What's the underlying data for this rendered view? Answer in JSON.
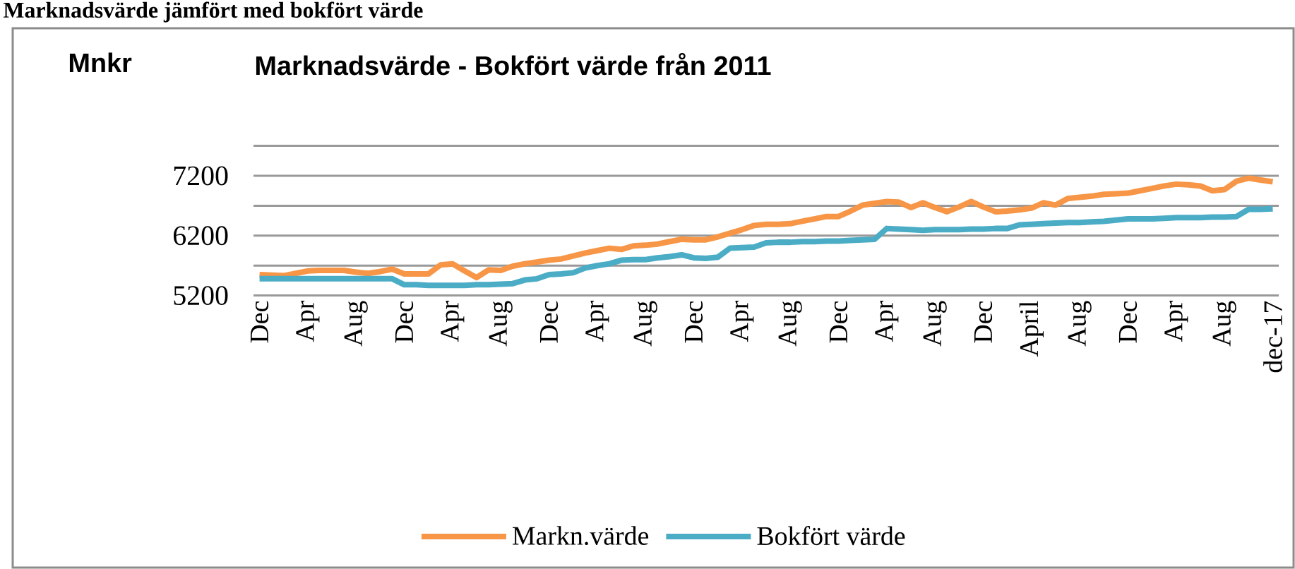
{
  "chart_data": {
    "type": "line",
    "title": "Marknadsvärde jämfört med bokfört värde",
    "subtitle": "Marknadsvärde - Bokfört värde från 2011",
    "annotations": [
      "Mnkr"
    ],
    "categories": [
      "Dec",
      null,
      null,
      null,
      "Apr",
      null,
      null,
      null,
      "Aug",
      null,
      null,
      null,
      "Dec",
      null,
      null,
      null,
      "Apr",
      null,
      null,
      null,
      "Aug",
      null,
      null,
      null,
      "Dec",
      null,
      null,
      null,
      "Apr",
      null,
      null,
      null,
      "Aug",
      null,
      null,
      null,
      "Dec",
      null,
      null,
      null,
      "Apr",
      null,
      null,
      null,
      "Aug",
      null,
      null,
      null,
      "Dec",
      null,
      null,
      null,
      "Apr",
      null,
      null,
      null,
      "Aug",
      null,
      null,
      null,
      "Dec",
      null,
      null,
      null,
      "April",
      null,
      null,
      null,
      "Aug",
      null,
      null,
      null,
      "Dec",
      null,
      null,
      null,
      "Apr",
      null,
      null,
      null,
      "Aug",
      null,
      null,
      null,
      "dec-17"
    ],
    "series": [
      {
        "name": "Markn.värde",
        "color": "#f79646",
        "values": [
          5550,
          5540,
          5530,
          5570,
          5610,
          5620,
          5620,
          5620,
          5590,
          5570,
          5600,
          5640,
          5560,
          5560,
          5560,
          5710,
          5730,
          5610,
          5500,
          5630,
          5620,
          5690,
          5730,
          5760,
          5790,
          5810,
          5860,
          5910,
          5950,
          5990,
          5970,
          6030,
          6040,
          6060,
          6100,
          6140,
          6130,
          6130,
          6180,
          6240,
          6300,
          6370,
          6390,
          6390,
          6400,
          6440,
          6480,
          6520,
          6520,
          6610,
          6710,
          6740,
          6770,
          6760,
          6670,
          6750,
          6670,
          6600,
          6680,
          6770,
          6680,
          6600,
          6610,
          6630,
          6660,
          6750,
          6710,
          6820,
          6840,
          6860,
          6890,
          6900,
          6910,
          6950,
          6990,
          7030,
          7060,
          7050,
          7030,
          6950,
          6970,
          7110,
          7160,
          7130,
          7100
        ]
      },
      {
        "name": "Bokfört värde",
        "color": "#4bacc6",
        "values": [
          5480,
          5480,
          5480,
          5480,
          5480,
          5480,
          5480,
          5480,
          5480,
          5480,
          5480,
          5480,
          5380,
          5380,
          5370,
          5370,
          5370,
          5370,
          5380,
          5380,
          5390,
          5400,
          5460,
          5480,
          5550,
          5560,
          5580,
          5660,
          5700,
          5730,
          5790,
          5800,
          5800,
          5830,
          5850,
          5880,
          5830,
          5820,
          5840,
          5990,
          6000,
          6010,
          6080,
          6090,
          6090,
          6100,
          6100,
          6110,
          6110,
          6120,
          6130,
          6140,
          6320,
          6310,
          6300,
          6290,
          6300,
          6300,
          6300,
          6310,
          6310,
          6320,
          6320,
          6380,
          6390,
          6400,
          6410,
          6420,
          6420,
          6430,
          6440,
          6460,
          6480,
          6480,
          6480,
          6490,
          6500,
          6500,
          6500,
          6510,
          6510,
          6520,
          6640,
          6640,
          6650
        ]
      }
    ],
    "ylim": [
      5200,
      7700
    ],
    "yticks": [
      5200,
      {
        "value": 5700,
        "label": null
      },
      6200,
      {
        "value": 6700,
        "label": null
      },
      7200,
      {
        "value": 7700,
        "label": null
      }
    ],
    "grid": "y",
    "legend": "bottom",
    "marker": "none",
    "line_style": "solid"
  }
}
